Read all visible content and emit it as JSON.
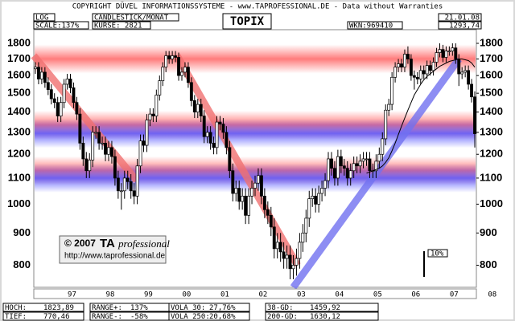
{
  "header": {
    "copyright": "COPYRIGHT DÜVEL INFORMATIONSSYSTEME - www.TAPROFESSIONAL.DE - Data without Warranties",
    "log": "LOG",
    "scale": "SCALE:137%",
    "style": "CANDLESTICK/MONAT",
    "count": "KURSE: 2821",
    "wkn": "WKN:969410",
    "date": "21.01.08",
    "last": "1293,74"
  },
  "footer": {
    "stats": [
      [
        "HOCH:",
        "1823,89"
      ],
      [
        "TIEF:",
        "770,46"
      ],
      [
        "RANGE+:",
        "137%"
      ],
      [
        "RANGE-:",
        "-58%"
      ],
      [
        "VOLA  30:",
        "27,76%"
      ],
      [
        "VOLA 250:",
        "20,68%"
      ],
      [
        "38-GD:",
        "1459,92"
      ],
      [
        "200-GD:",
        "1630,12"
      ]
    ],
    "logo_year": "© 2007",
    "logo_ta": "TA",
    "logo_pro": "professional",
    "url": "http://www.taprofessional.de",
    "scale_marker": "10%"
  },
  "chart_data": {
    "type": "candlestick",
    "title": "TOPIX",
    "log_scale": true,
    "up_color": "#ffffff",
    "down_color": "#000000",
    "categories": [
      null,
      null,
      null,
      null,
      null,
      null,
      null,
      null,
      null,
      null,
      null,
      null,
      null,
      null,
      null,
      null,
      null,
      null,
      null,
      null,
      null,
      null,
      null,
      null,
      null,
      null,
      null,
      null,
      null,
      null,
      null,
      null,
      null,
      null,
      null,
      null,
      null,
      null,
      null,
      null,
      null,
      null,
      null,
      null,
      null,
      null,
      null,
      null,
      null,
      null,
      null,
      null,
      null,
      null,
      null,
      null,
      null,
      null,
      null,
      null,
      null,
      null,
      null,
      null,
      null,
      null,
      null,
      null,
      null,
      null,
      null,
      null,
      null,
      null,
      null,
      null,
      null,
      null,
      null,
      null,
      null,
      null,
      null,
      null,
      null,
      null,
      null,
      null,
      null,
      null,
      null,
      null,
      null,
      null,
      null,
      null,
      null,
      null,
      null,
      null,
      null,
      null,
      null,
      null,
      null,
      null,
      null,
      null,
      null,
      null,
      null,
      null,
      null,
      null,
      null,
      null,
      null,
      null,
      null,
      null,
      null,
      null,
      null,
      null,
      null,
      null,
      null,
      null,
      null,
      null,
      null,
      null,
      null,
      null,
      null,
      null,
      null,
      null,
      null
    ],
    "open": [
      1640,
      1650,
      1580,
      1620,
      1560,
      1520,
      1470,
      1450,
      1380,
      1450,
      1550,
      1580,
      1530,
      1450,
      1390,
      1250,
      1180,
      1130,
      1175,
      1300,
      1300,
      1250,
      1250,
      1200,
      1230,
      1190,
      1100,
      1050,
      1050,
      1100,
      1086,
      1050,
      1030,
      1150,
      1260,
      1240,
      1360,
      1390,
      1380,
      1490,
      1570,
      1650,
      1720,
      1700,
      1720,
      1710,
      1600,
      1620,
      1650,
      1560,
      1460,
      1400,
      1440,
      1380,
      1280,
      1300,
      1250,
      1230,
      1350,
      1340,
      1300,
      1230,
      1130,
      1040,
      1060,
      1010,
      1030,
      960,
      1030,
      1060,
      1080,
      1110,
      1030,
      980,
      960,
      920,
      850,
      870,
      840,
      820,
      830,
      790,
      800,
      820,
      870,
      900,
      950,
      1020,
      1030,
      1000,
      1040,
      1060,
      1090,
      1180,
      1140,
      1100,
      1190,
      1150,
      1140,
      1100,
      1130,
      1160,
      1150,
      1170,
      1180,
      1180,
      1130,
      1130,
      1170,
      1200,
      1270,
      1410,
      1440,
      1590,
      1650,
      1670,
      1650,
      1730,
      1700,
      1600,
      1590,
      1580,
      1630,
      1610,
      1660,
      1630,
      1680,
      1740,
      1760,
      1710,
      1750,
      1750,
      1770,
      1700,
      1610,
      1620,
      1630,
      1550,
      1480
    ],
    "high": [
      1680,
      1680,
      1650,
      1650,
      1590,
      1550,
      1500,
      1480,
      1480,
      1580,
      1610,
      1610,
      1560,
      1480,
      1420,
      1280,
      1210,
      1205,
      1330,
      1330,
      1330,
      1280,
      1280,
      1260,
      1260,
      1220,
      1130,
      1080,
      1130,
      1130,
      1116,
      1080,
      1180,
      1290,
      1290,
      1390,
      1420,
      1420,
      1520,
      1600,
      1680,
      1750,
      1750,
      1750,
      1750,
      1740,
      1650,
      1680,
      1680,
      1590,
      1490,
      1470,
      1470,
      1410,
      1330,
      1330,
      1280,
      1380,
      1380,
      1370,
      1330,
      1260,
      1160,
      1090,
      1090,
      1060,
      1060,
      1060,
      1090,
      1110,
      1140,
      1140,
      1060,
      1010,
      990,
      950,
      900,
      900,
      870,
      860,
      860,
      830,
      850,
      900,
      930,
      980,
      1050,
      1060,
      1060,
      1070,
      1090,
      1120,
      1210,
      1210,
      1170,
      1220,
      1220,
      1180,
      1170,
      1160,
      1190,
      1190,
      1200,
      1210,
      1210,
      1210,
      1160,
      1200,
      1230,
      1300,
      1440,
      1470,
      1620,
      1680,
      1700,
      1700,
      1760,
      1780,
      1730,
      1630,
      1620,
      1660,
      1660,
      1690,
      1690,
      1710,
      1770,
      1800,
      1790,
      1780,
      1780,
      1800,
      1800,
      1730,
      1650,
      1660,
      1660,
      1580,
      1510
    ],
    "low": [
      1610,
      1550,
      1550,
      1530,
      1490,
      1440,
      1420,
      1350,
      1350,
      1420,
      1520,
      1500,
      1420,
      1360,
      1220,
      1150,
      1100,
      1100,
      1145,
      1270,
      1220,
      1220,
      1170,
      1170,
      1160,
      1070,
      1020,
      980,
      1020,
      1056,
      1020,
      1000,
      1000,
      1120,
      1210,
      1210,
      1330,
      1350,
      1350,
      1460,
      1540,
      1620,
      1670,
      1670,
      1680,
      1570,
      1570,
      1590,
      1530,
      1430,
      1370,
      1370,
      1350,
      1250,
      1250,
      1220,
      1200,
      1200,
      1310,
      1270,
      1200,
      1100,
      1010,
      1010,
      980,
      980,
      930,
      930,
      1000,
      1030,
      1050,
      1000,
      950,
      930,
      890,
      820,
      820,
      810,
      790,
      790,
      760,
      760,
      770,
      790,
      840,
      870,
      920,
      990,
      970,
      970,
      1010,
      1030,
      1060,
      1110,
      1070,
      1070,
      1120,
      1110,
      1070,
      1070,
      1100,
      1120,
      1120,
      1140,
      1150,
      1100,
      1100,
      1100,
      1140,
      1170,
      1240,
      1380,
      1410,
      1560,
      1620,
      1620,
      1620,
      1670,
      1570,
      1520,
      1550,
      1550,
      1580,
      1580,
      1600,
      1600,
      1650,
      1710,
      1680,
      1680,
      1720,
      1720,
      1670,
      1540,
      1580,
      1590,
      1520,
      1450,
      1230
    ],
    "close": [
      1650,
      1580,
      1620,
      1560,
      1520,
      1470,
      1450,
      1380,
      1450,
      1550,
      1580,
      1530,
      1450,
      1390,
      1250,
      1180,
      1130,
      1175,
      1300,
      1300,
      1250,
      1250,
      1200,
      1230,
      1190,
      1100,
      1050,
      1050,
      1100,
      1086,
      1050,
      1030,
      1150,
      1260,
      1240,
      1360,
      1390,
      1380,
      1490,
      1570,
      1650,
      1720,
      1700,
      1720,
      1710,
      1600,
      1620,
      1650,
      1560,
      1460,
      1400,
      1440,
      1380,
      1280,
      1300,
      1250,
      1230,
      1350,
      1340,
      1300,
      1230,
      1130,
      1040,
      1060,
      1010,
      1030,
      960,
      1030,
      1060,
      1080,
      1110,
      1030,
      980,
      960,
      920,
      850,
      870,
      840,
      820,
      830,
      790,
      800,
      820,
      870,
      900,
      950,
      1020,
      1030,
      1000,
      1040,
      1060,
      1090,
      1180,
      1140,
      1100,
      1190,
      1150,
      1140,
      1100,
      1130,
      1160,
      1150,
      1170,
      1180,
      1180,
      1130,
      1130,
      1170,
      1200,
      1270,
      1410,
      1440,
      1590,
      1650,
      1670,
      1650,
      1730,
      1700,
      1600,
      1590,
      1580,
      1630,
      1610,
      1660,
      1630,
      1680,
      1740,
      1760,
      1710,
      1750,
      1750,
      1770,
      1700,
      1610,
      1620,
      1630,
      1550,
      1480,
      1293.74
    ],
    "ma": {
      "color": "#000000",
      "values": [
        null,
        null,
        null,
        null,
        null,
        null,
        null,
        null,
        null,
        null,
        null,
        null,
        null,
        null,
        null,
        null,
        null,
        null,
        null,
        null,
        null,
        null,
        null,
        null,
        null,
        null,
        null,
        null,
        null,
        null,
        null,
        null,
        null,
        null,
        null,
        null,
        null,
        null,
        null,
        null,
        null,
        null,
        null,
        null,
        null,
        null,
        null,
        null,
        null,
        null,
        null,
        null,
        null,
        null,
        null,
        null,
        null,
        null,
        null,
        null,
        null,
        null,
        null,
        null,
        null,
        null,
        null,
        null,
        null,
        null,
        null,
        null,
        null,
        null,
        null,
        null,
        null,
        null,
        null,
        null,
        null,
        null,
        null,
        null,
        null,
        null,
        null,
        null,
        null,
        null,
        null,
        null,
        null,
        null,
        null,
        null,
        null,
        null,
        null,
        null,
        null,
        null,
        null,
        null,
        1120,
        1125,
        1130,
        1135,
        1140,
        1150,
        1165,
        1185,
        1215,
        1250,
        1290,
        1330,
        1370,
        1410,
        1450,
        1490,
        1520,
        1550,
        1575,
        1595,
        1610,
        1625,
        1640,
        1655,
        1665,
        1675,
        1685,
        1690,
        1695,
        1700,
        1700,
        1695,
        1690,
        1675,
        1650
      ]
    },
    "bands": [
      {
        "value": 1700,
        "color": "#ff5050"
      },
      {
        "value": 1335,
        "color": "#ff5050"
      },
      {
        "value": 1295,
        "color": "#4040ff"
      },
      {
        "value": 1130,
        "color": "#ff5050"
      },
      {
        "value": 1100,
        "color": "#4040ff"
      }
    ],
    "trendlines": [
      {
        "color": "#f07070",
        "x": [
          -0.5,
          31.8
        ],
        "y": [
          1720,
          1090
        ]
      },
      {
        "color": "#f07070",
        "x": [
          44.5,
          82.3
        ],
        "y": [
          1720,
          800
        ]
      },
      {
        "color": "#7070f0",
        "x": [
          81,
          133
        ],
        "y": [
          738,
          1700
        ]
      }
    ],
    "ylim": [
      738,
      1892
    ],
    "yticks": [
      800,
      900,
      1000,
      1100,
      1200,
      1300,
      1400,
      1500,
      1600,
      1700,
      1800
    ],
    "xlim": [
      -0.5,
      138.5
    ],
    "xticks": [
      {
        "value": 11.5,
        "label": "97"
      },
      {
        "value": 23.5,
        "label": "98"
      },
      {
        "value": 35.5,
        "label": "99"
      },
      {
        "value": 47.5,
        "label": "00"
      },
      {
        "value": 59.5,
        "label": "01"
      },
      {
        "value": 71.5,
        "label": "02"
      },
      {
        "value": 83.5,
        "label": "03"
      },
      {
        "value": 95.5,
        "label": "04"
      },
      {
        "value": 107.5,
        "label": "05"
      },
      {
        "value": 119.5,
        "label": "06"
      },
      {
        "value": 131.5,
        "label": "07"
      },
      {
        "value": 143.5,
        "label": "08"
      }
    ]
  }
}
